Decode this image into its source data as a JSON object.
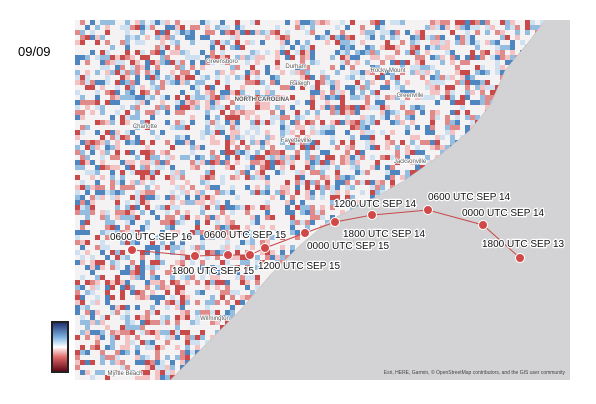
{
  "timestamp": "09/09",
  "map": {
    "places": [
      "NORTH CAROLINA",
      "Greensboro",
      "Durham",
      "Raleigh",
      "Rocky Mount",
      "Greenville",
      "Fayetteville",
      "Jacksonville",
      "Charlotte",
      "Wilmington",
      "Myrtle Beach"
    ],
    "track_labels": [
      "0600 UTC SEP 14",
      "1200 UTC SEP 14",
      "0000 UTC SEP 14",
      "1800 UTC SEP 14",
      "0000 UTC SEP 15",
      "0600 UTC SEP 15",
      "0600 UTC SEP 16",
      "1200 UTC SEP 15",
      "1800 UTC SEP 15",
      "1800 UTC SEP 13"
    ],
    "attribution": "Esri, HERE, Garmin, © OpenStreetMap contributors, and the GIS user community"
  }
}
